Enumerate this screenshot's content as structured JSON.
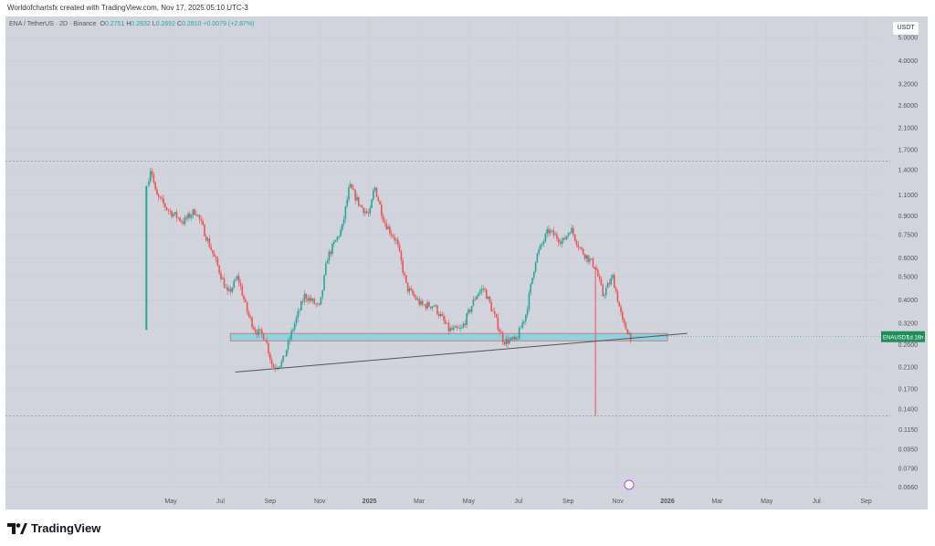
{
  "credit": "Worldofchartsfx created with TradingView.com, Nov 17, 2025 05:10 UTC-3",
  "legend": {
    "symbol": "ENA / TetherUS · 2D · Binance",
    "o_label": "O",
    "o": "0.2751",
    "h_label": "H",
    "h": "0.2832",
    "l_label": "L",
    "l": "0.2692",
    "c_label": "C",
    "c": "0.2810",
    "change": "+0.0079 (+2.87%)"
  },
  "unit": "USDT",
  "price_tag": {
    "symbol": "ENAUSDT",
    "countdown": "1d 16h"
  },
  "logo": "TradingView",
  "colors": {
    "up": "#26a69a",
    "down": "#ef5350",
    "zone": "#8fd3e0",
    "bg": "#d1d4dc"
  },
  "chart_data": {
    "type": "candlestick",
    "title": "ENA / TetherUS · 2D · Binance",
    "yscale": "log",
    "ylim": [
      0.062,
      5.6
    ],
    "y_ticks": [
      "5.0000",
      "4.0000",
      "3.2000",
      "2.6000",
      "2.1000",
      "1.7000",
      "1.4000",
      "1.1000",
      "0.9000",
      "0.7500",
      "0.6000",
      "0.5000",
      "0.4000",
      "0.3200",
      "0.2600",
      "0.2100",
      "0.1700",
      "0.1400",
      "0.1150",
      "0.0950",
      "0.0790",
      "0.0660"
    ],
    "x_ticks": [
      {
        "label": "May",
        "month": 4
      },
      {
        "label": "Jul",
        "month": 6
      },
      {
        "label": "Sep",
        "month": 8
      },
      {
        "label": "Nov",
        "month": 10
      },
      {
        "label": "2025",
        "month": 12
      },
      {
        "label": "Mar",
        "month": 14
      },
      {
        "label": "May",
        "month": 16
      },
      {
        "label": "Jul",
        "month": 18
      },
      {
        "label": "Sep",
        "month": 20
      },
      {
        "label": "Nov",
        "month": 22
      },
      {
        "label": "2026",
        "month": 24
      },
      {
        "label": "Mar",
        "month": 26
      },
      {
        "label": "May",
        "month": 28
      },
      {
        "label": "Jul",
        "month": 30
      },
      {
        "label": "Sep",
        "month": 32
      }
    ],
    "x_unit": "months since Jan 2024",
    "price_path": [
      [
        3.05,
        1.2
      ],
      [
        3.2,
        1.45
      ],
      [
        3.4,
        1.1
      ],
      [
        3.9,
        0.95
      ],
      [
        4.5,
        0.85
      ],
      [
        5.0,
        0.95
      ],
      [
        5.4,
        0.75
      ],
      [
        5.9,
        0.55
      ],
      [
        6.3,
        0.42
      ],
      [
        6.7,
        0.5
      ],
      [
        7.1,
        0.35
      ],
      [
        7.4,
        0.3
      ],
      [
        7.8,
        0.28
      ],
      [
        8.1,
        0.21
      ],
      [
        8.5,
        0.22
      ],
      [
        8.9,
        0.3
      ],
      [
        9.4,
        0.42
      ],
      [
        10.0,
        0.37
      ],
      [
        10.3,
        0.6
      ],
      [
        10.9,
        0.8
      ],
      [
        11.2,
        1.2
      ],
      [
        11.6,
        1.0
      ],
      [
        12.0,
        0.9
      ],
      [
        12.2,
        1.2
      ],
      [
        12.6,
        0.85
      ],
      [
        13.1,
        0.7
      ],
      [
        13.5,
        0.45
      ],
      [
        14.1,
        0.38
      ],
      [
        14.6,
        0.38
      ],
      [
        15.2,
        0.3
      ],
      [
        15.7,
        0.3
      ],
      [
        16.3,
        0.42
      ],
      [
        16.6,
        0.45
      ],
      [
        17.0,
        0.35
      ],
      [
        17.4,
        0.27
      ],
      [
        17.9,
        0.27
      ],
      [
        18.3,
        0.35
      ],
      [
        18.7,
        0.6
      ],
      [
        19.2,
        0.78
      ],
      [
        19.8,
        0.7
      ],
      [
        20.1,
        0.8
      ],
      [
        20.5,
        0.65
      ],
      [
        21.1,
        0.55
      ],
      [
        21.4,
        0.42
      ],
      [
        21.8,
        0.5
      ],
      [
        22.2,
        0.32
      ],
      [
        22.53,
        0.281
      ]
    ],
    "first_candle": {
      "open": 0.3,
      "close": 1.2
    },
    "dashed_levels": [
      1.52,
      0.131
    ],
    "support_zone": {
      "from_month": 6.4,
      "to_month": 24.0,
      "top": 0.29,
      "bottom": 0.27
    },
    "trendline": [
      [
        6.6,
        0.2
      ],
      [
        24.8,
        0.29
      ]
    ],
    "wick": {
      "month": 21.1,
      "low": 0.131,
      "high": 0.55
    }
  }
}
